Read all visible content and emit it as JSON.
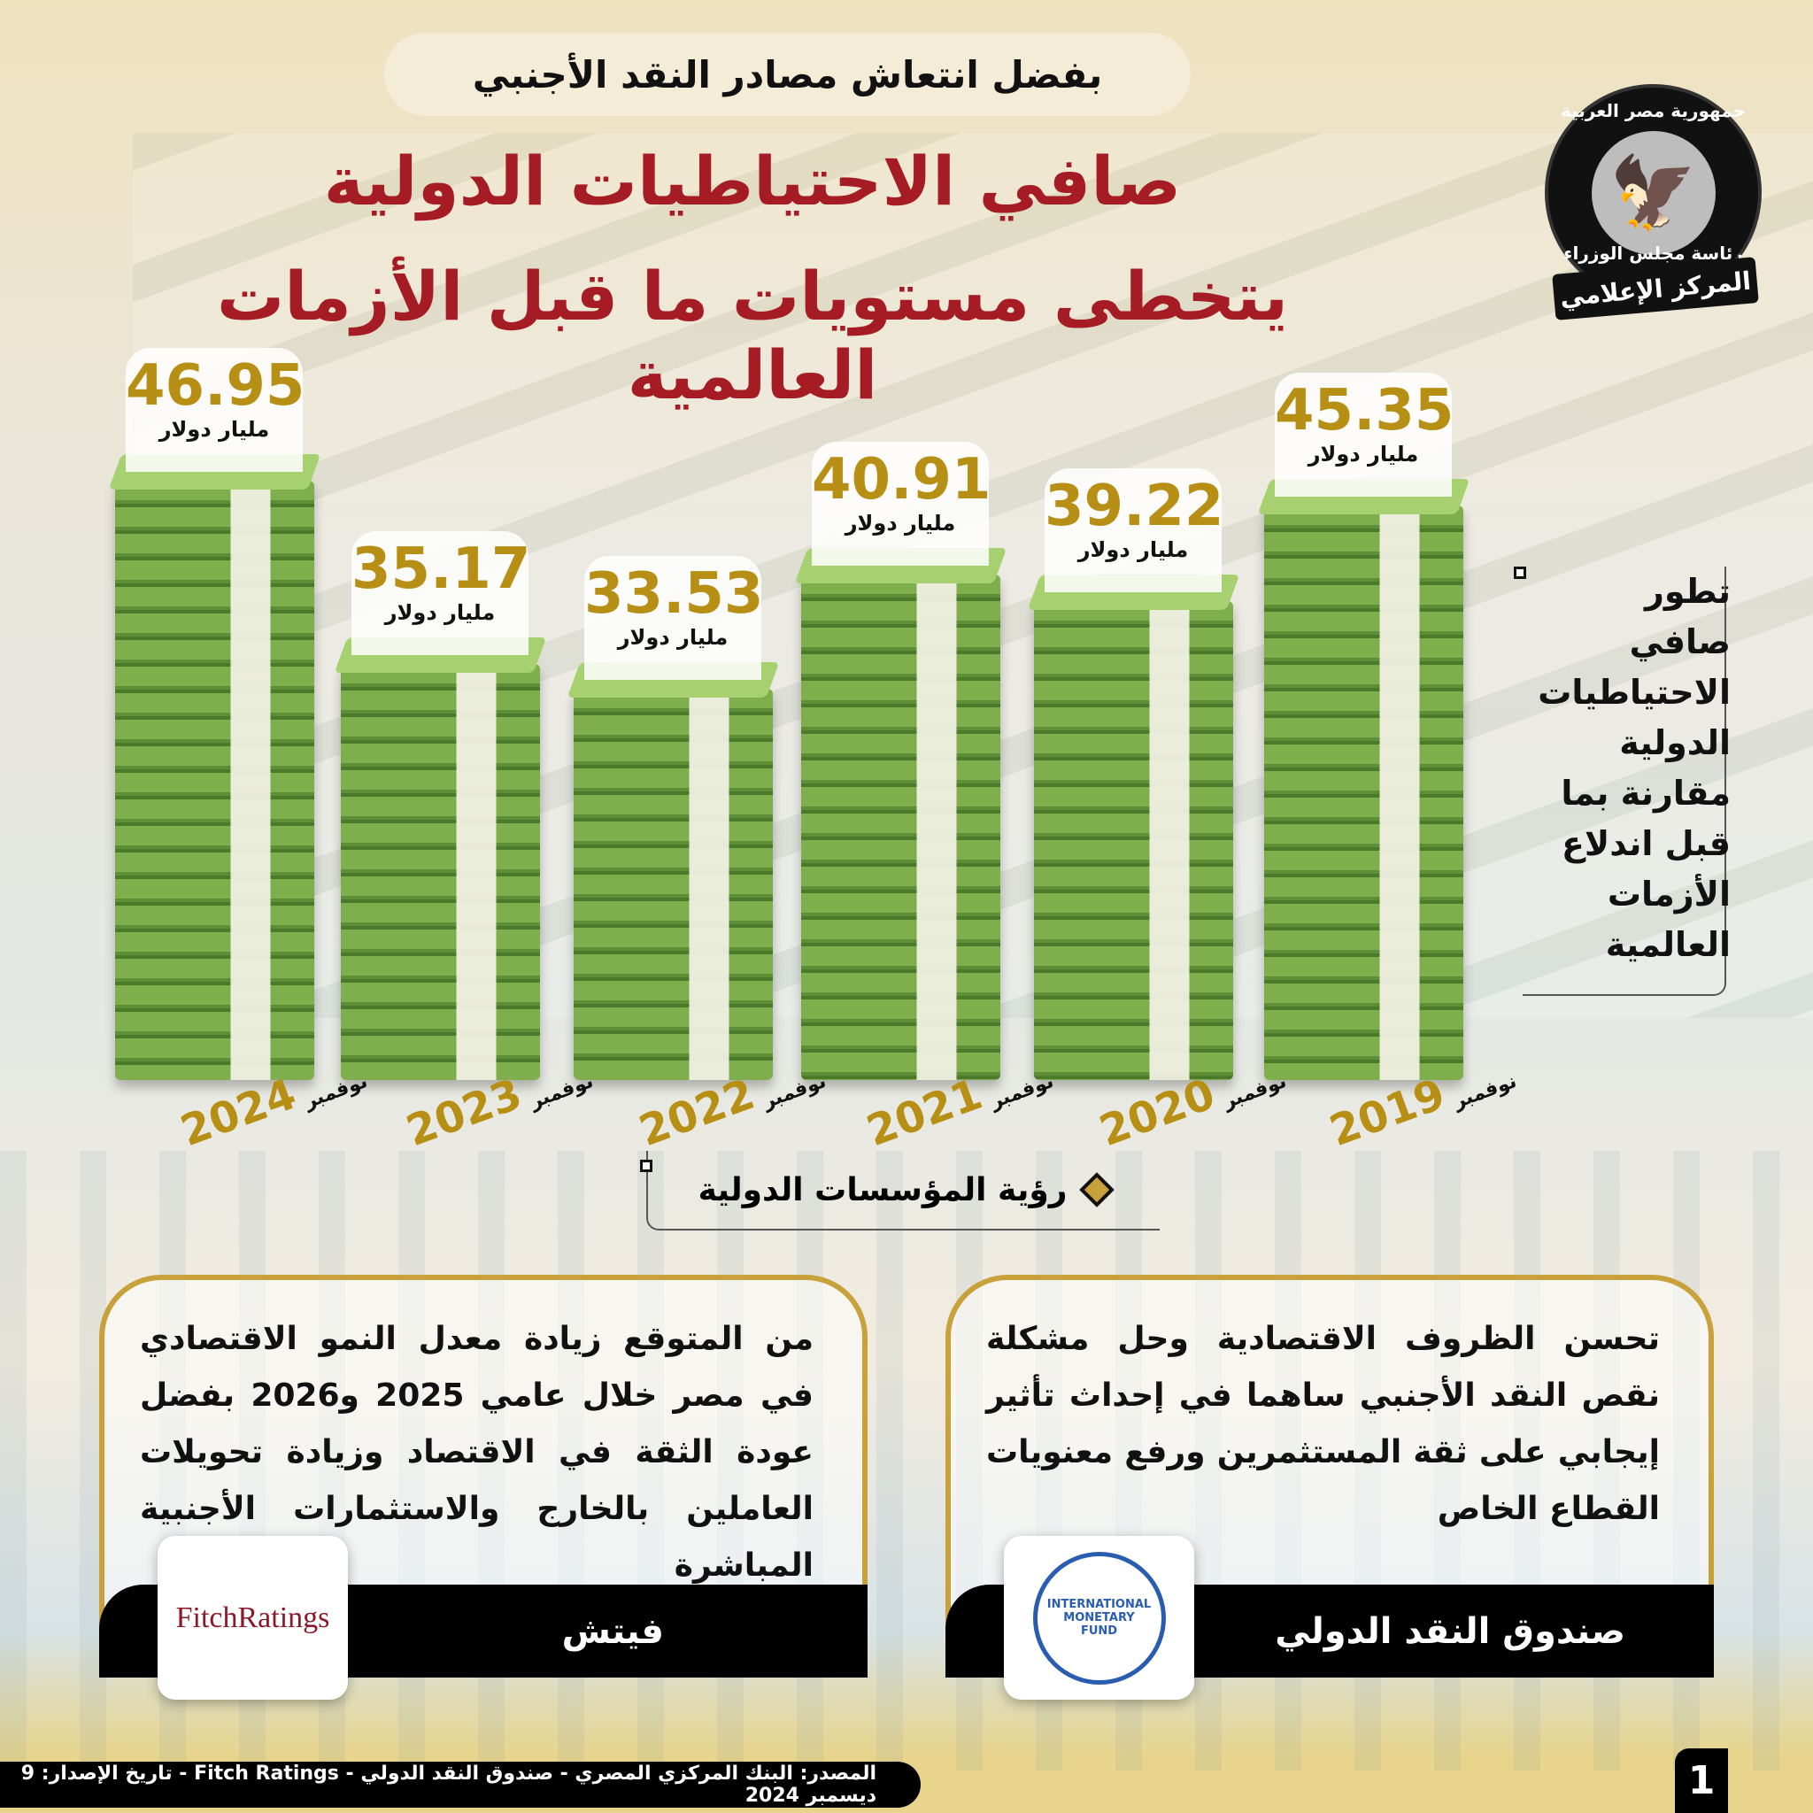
{
  "header": {
    "kicker": "بفضل انتعاش مصادر النقد الأجنبي",
    "title_line1": "صافي الاحتياطيات الدولية",
    "title_line2": "يتخطى مستويات ما قبل الأزمات العالمية"
  },
  "logo": {
    "top_text": "جمهورية مصر العربية",
    "bottom_text": "رئاسة مجلس الوزراء",
    "banner": "المركز الإعلامي"
  },
  "chart_data": {
    "type": "bar",
    "unit": "مليار دولار",
    "categories": [
      "نوفمبر 2024",
      "نوفمبر 2023",
      "نوفمبر 2022",
      "نوفمبر 2021",
      "نوفمبر 2020",
      "نوفمبر 2019"
    ],
    "bars": [
      {
        "month": "نوفمبر",
        "year": "2024",
        "value": "46.95",
        "unit": "مليار دولار"
      },
      {
        "month": "نوفمبر",
        "year": "2023",
        "value": "35.17",
        "unit": "مليار دولار"
      },
      {
        "month": "نوفمبر",
        "year": "2022",
        "value": "33.53",
        "unit": "مليار دولار"
      },
      {
        "month": "نوفمبر",
        "year": "2021",
        "value": "40.91",
        "unit": "مليار دولار"
      },
      {
        "month": "نوفمبر",
        "year": "2020",
        "value": "39.22",
        "unit": "مليار دولار"
      },
      {
        "month": "نوفمبر",
        "year": "2019",
        "value": "45.35",
        "unit": "مليار دولار"
      }
    ]
  },
  "side_caption": [
    "تطور",
    "صافي",
    "الاحتياطيات",
    "الدولية",
    "مقارنة بما",
    "قبل اندلاع",
    "الأزمات",
    "العالمية"
  ],
  "section_title": "رؤية المؤسسات الدولية",
  "cards": [
    {
      "text": "تحسن الظروف الاقتصادية وحل مشكلة نقص النقد الأجنبي ساهما في إحداث تأثير إيجابي على ثقة المستثمرين ورفع معنويات القطاع الخاص",
      "name": "صندوق النقد الدولي",
      "logo_text": "INTERNATIONAL MONETARY FUND"
    },
    {
      "text": "من المتوقع زيادة معدل النمو الاقتصادي في مصر خلال عامي 2025 و2026 بفضل عودة الثقة في الاقتصاد وزيادة تحويلات العاملين بالخارج والاستثمارات الأجنبية المباشرة",
      "name": "فيتش",
      "logo_text": "FitchRatings"
    }
  ],
  "footer": {
    "source": "المصدر: البنك المركزي المصري - صندوق النقد الدولي - Fitch Ratings - تاريخ الإصدار: 9 ديسمبر 2024",
    "page": "1"
  },
  "colors": {
    "title": "#a51c24",
    "gold": "#b68f14",
    "stack_green": "#7fae4c"
  }
}
